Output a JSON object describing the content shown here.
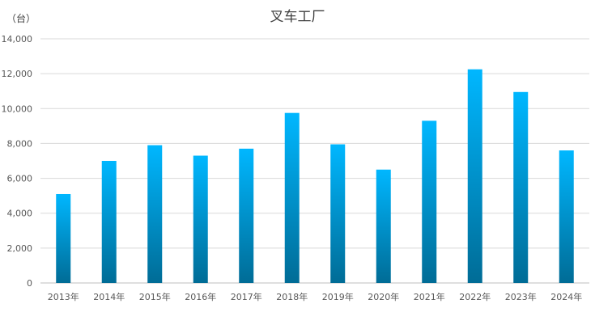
{
  "chart_data": {
    "type": "bar",
    "title": "叉车工厂",
    "unit_label": "（台）",
    "categories": [
      "2013年",
      "2014年",
      "2015年",
      "2016年",
      "2017年",
      "2018年",
      "2019年",
      "2020年",
      "2021年",
      "2022年",
      "2023年",
      "2024年"
    ],
    "series": [
      {
        "values": [
          5100,
          7000,
          7900,
          7300,
          7700,
          9750,
          7950,
          6500,
          9300,
          12250,
          10950,
          7600
        ]
      }
    ],
    "ylim": [
      0,
      14000
    ],
    "yticks": [
      0,
      2000,
      4000,
      6000,
      8000,
      10000,
      12000,
      14000
    ],
    "ytick_labels": [
      "0",
      "2,000",
      "4,000",
      "6,000",
      "8,000",
      "10,000",
      "12,000",
      "14,000"
    ],
    "grid": true,
    "colors": {
      "bar_top": "#00b7ff",
      "bar_bottom": "#006c96",
      "grid": "#d9d9d9",
      "text": "#595959"
    }
  }
}
